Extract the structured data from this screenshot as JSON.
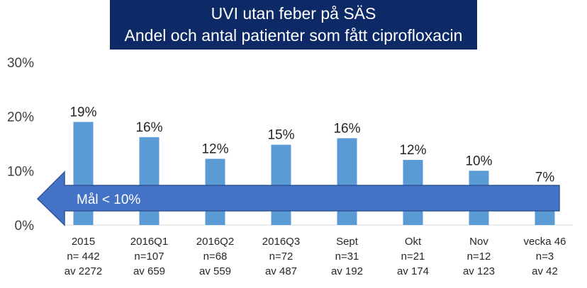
{
  "chart_data": {
    "type": "bar",
    "title": [
      "UVI utan feber på SÄS",
      "Andel och antal patienter som fått ciprofloxacin"
    ],
    "ylim": [
      0,
      30
    ],
    "yticks": [
      "0%",
      "10%",
      "20%",
      "30%"
    ],
    "ytick_values": [
      0,
      10,
      20,
      30
    ],
    "grid": false,
    "bar_color": "#5b9bd5",
    "categories": [
      [
        "2015",
        "n= 442",
        "av 2272"
      ],
      [
        "2016Q1",
        "n=107",
        "av 659"
      ],
      [
        "2016Q2",
        "n=68",
        "av 559"
      ],
      [
        "2016Q3",
        "n=72",
        "av 487"
      ],
      [
        "Sept",
        "n=31",
        "av 192"
      ],
      [
        "Okt",
        "n=21",
        "av 174"
      ],
      [
        "Nov",
        "n=12",
        "av 123"
      ],
      [
        "vecka 46",
        "n=3",
        "av 42"
      ]
    ],
    "values": [
      19,
      16.2,
      12.2,
      14.8,
      16,
      12,
      10,
      7
    ],
    "data_labels": [
      "19%",
      "16%",
      "12%",
      "15%",
      "16%",
      "12%",
      "10%",
      "7%"
    ],
    "annotation": {
      "text": "Mål < 10%",
      "color": "#4472c4",
      "border": "#2f5597"
    }
  }
}
